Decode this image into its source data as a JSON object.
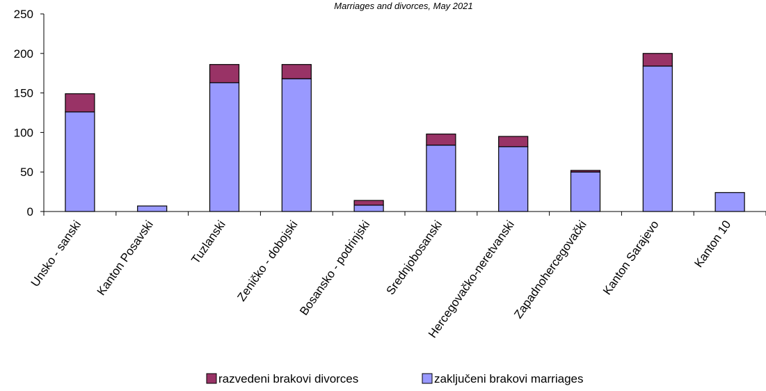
{
  "chart_data": {
    "type": "bar",
    "stacked": true,
    "title": "Marriages  and  divorces,  May 2021",
    "xlabel": "",
    "ylabel": "",
    "ylim": [
      0,
      250
    ],
    "yticks": [
      0,
      50,
      100,
      150,
      200,
      250
    ],
    "grid": false,
    "legend_position": "bottom",
    "categories": [
      "Unsko - sanski",
      "Kanton Posavski",
      "Tuzlanski",
      "Zeničko - dobojski",
      "Bosansko - podrinjski",
      "Srednjobosanski",
      "Hercegovačko-neretvanski",
      "Zapadnohercegovački",
      "Kanton Sarajevo",
      "Kanton 10"
    ],
    "series": [
      {
        "name": "zaključeni brakovi marriages",
        "color": "#9999ff",
        "values": [
          126,
          7,
          163,
          168,
          8,
          84,
          82,
          50,
          184,
          24
        ]
      },
      {
        "name": "razvedeni brakovi divorces",
        "color": "#993366",
        "values": [
          23,
          0,
          23,
          18,
          6,
          14,
          13,
          2,
          16,
          0
        ]
      }
    ],
    "legend": [
      {
        "label": "razvedeni brakovi divorces",
        "color": "#993366"
      },
      {
        "label": "zaključeni brakovi marriages",
        "color": "#9999ff"
      }
    ]
  }
}
